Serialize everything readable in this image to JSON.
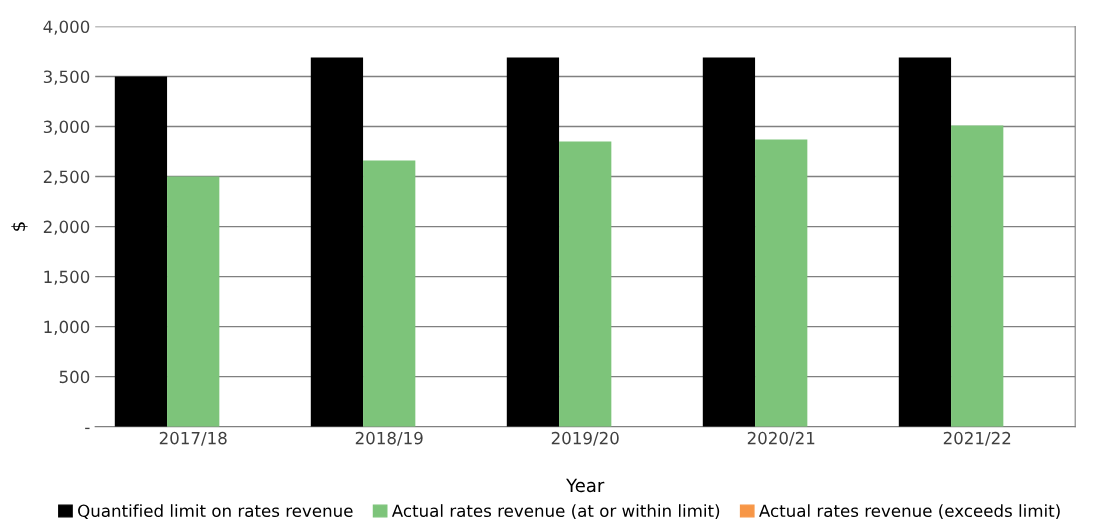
{
  "chart_data": {
    "type": "bar",
    "xlabel": "Year",
    "ylabel": "$",
    "categories": [
      "2017/18",
      "2018/19",
      "2019/20",
      "2020/21",
      "2021/22"
    ],
    "series": [
      {
        "name": "Quantified limit on rates revenue",
        "color": "#000000",
        "values": [
          3500,
          3690,
          3690,
          3690,
          3690
        ]
      },
      {
        "name": "Actual rates revenue (at or within limit)",
        "color": "#7dc47a",
        "values": [
          2500,
          2660,
          2850,
          2870,
          3010
        ]
      },
      {
        "name": "Actual rates revenue (exceeds limit)",
        "color": "#f79646",
        "values": [
          null,
          null,
          null,
          null,
          null
        ]
      }
    ],
    "ylim": [
      0,
      4000
    ],
    "yticks": [
      {
        "value": 0,
        "label": "-"
      },
      {
        "value": 500,
        "label": "500"
      },
      {
        "value": 1000,
        "label": "1,000"
      },
      {
        "value": 1500,
        "label": "1,500"
      },
      {
        "value": 2000,
        "label": "2,000"
      },
      {
        "value": 2500,
        "label": "2,500"
      },
      {
        "value": 3000,
        "label": "3,000"
      },
      {
        "value": 3500,
        "label": "3,500"
      },
      {
        "value": 4000,
        "label": "4,000"
      }
    ],
    "grid": "y",
    "legend": "bottom"
  }
}
